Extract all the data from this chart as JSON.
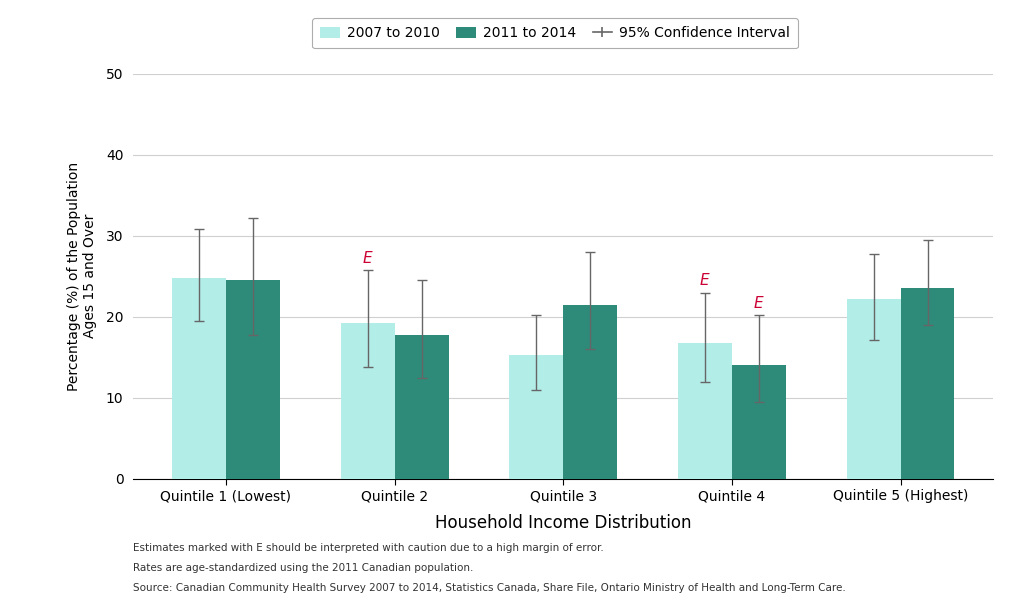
{
  "categories": [
    "Quintile 1 (Lowest)",
    "Quintile 2",
    "Quintile 3",
    "Quintile 4",
    "Quintile 5 (Highest)"
  ],
  "series1_label": "2007 to 2010",
  "series2_label": "2011 to 2014",
  "series1_color": "#b2ede8",
  "series2_color": "#2e8b7a",
  "series1_values": [
    24.8,
    19.2,
    15.3,
    16.8,
    22.2
  ],
  "series2_values": [
    24.5,
    17.8,
    21.4,
    14.0,
    23.5
  ],
  "series1_ci_low": [
    19.5,
    13.8,
    11.0,
    12.0,
    17.2
  ],
  "series1_ci_high": [
    30.8,
    25.8,
    20.2,
    23.0,
    27.8
  ],
  "series2_ci_low": [
    17.8,
    12.5,
    16.0,
    9.5,
    19.0
  ],
  "series2_ci_high": [
    32.2,
    24.5,
    28.0,
    20.2,
    29.5
  ],
  "e_markers": [
    {
      "series": 1,
      "quintile_idx": 1
    },
    {
      "series": 1,
      "quintile_idx": 3
    },
    {
      "series": 2,
      "quintile_idx": 3
    }
  ],
  "xlabel": "Household Income Distribution",
  "ylabel": "Percentage (%) of the Population\nAges 15 and Over",
  "ylim": [
    0,
    50
  ],
  "yticks": [
    0,
    10,
    20,
    30,
    40,
    50
  ],
  "bar_width": 0.32,
  "ci_label": "95% Confidence Interval",
  "footnote_line1": "Estimates marked with E should be interpreted with caution due to a high margin of error.",
  "footnote_line2": "Rates are age-standardized using the 2011 Canadian population.",
  "footnote_line3": "Source: Canadian Community Health Survey 2007 to 2014, Statistics Canada, Share File, Ontario Ministry of Health and Long-Term Care.",
  "background_color": "#ffffff",
  "grid_color": "#d0d0d0",
  "error_bar_color": "#666666",
  "e_color": "#cc0033"
}
